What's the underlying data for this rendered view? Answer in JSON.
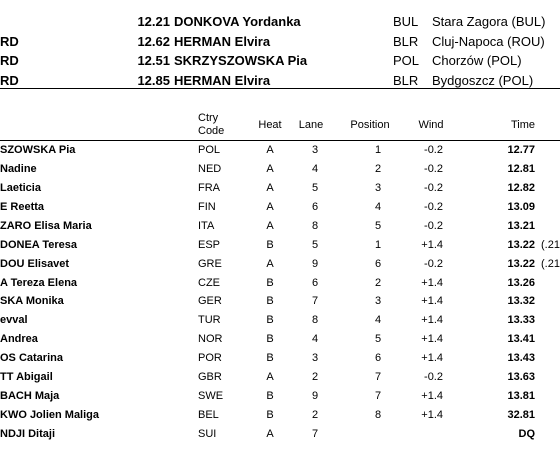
{
  "records": [
    {
      "time": "12.21",
      "athlete": "DONKOVA Yordanka",
      "country": "BUL",
      "venue": "Stara Zagora (BUL)"
    },
    {
      "label": "RD",
      "time": "12.62",
      "athlete": "HERMAN Elvira",
      "country": "BLR",
      "venue": "Cluj-Napoca (ROU)"
    },
    {
      "label": "RD",
      "time": "12.51",
      "athlete": "SKRZYSZOWSKA Pia",
      "country": "POL",
      "venue": "Chorzów (POL)"
    },
    {
      "label": "RD",
      "time": "12.85",
      "athlete": "HERMAN Elvira",
      "country": "BLR",
      "venue": "Bydgoszcz (POL)"
    }
  ],
  "table": {
    "header": {
      "code": [
        "Ctry",
        "Code"
      ],
      "heat": "Heat",
      "lane": "Lane",
      "position": "Position",
      "wind": "Wind",
      "time": "Time"
    },
    "rows": [
      {
        "name": "SZOWSKA Pia",
        "code": "POL",
        "heat": "A",
        "lane": "3",
        "position": "1",
        "wind": "-0.2",
        "time": "12.77"
      },
      {
        "name": "Nadine",
        "code": "NED",
        "heat": "A",
        "lane": "4",
        "position": "2",
        "wind": "-0.2",
        "time": "12.81"
      },
      {
        "name": "Laeticia",
        "code": "FRA",
        "heat": "A",
        "lane": "5",
        "position": "3",
        "wind": "-0.2",
        "time": "12.82"
      },
      {
        "name": "E Reetta",
        "code": "FIN",
        "heat": "A",
        "lane": "6",
        "position": "4",
        "wind": "-0.2",
        "time": "13.09"
      },
      {
        "name": "ZARO Elisa Maria",
        "code": "ITA",
        "heat": "A",
        "lane": "8",
        "position": "5",
        "wind": "-0.2",
        "time": "13.21"
      },
      {
        "name": "DONEA Teresa",
        "code": "ESP",
        "heat": "B",
        "lane": "5",
        "position": "1",
        "wind": "+1.4",
        "time": "13.22",
        "note": "(.21"
      },
      {
        "name": "DOU Elisavet",
        "code": "GRE",
        "heat": "A",
        "lane": "9",
        "position": "6",
        "wind": "-0.2",
        "time": "13.22",
        "note": "(.21"
      },
      {
        "name": "A Tereza Elena",
        "code": "CZE",
        "heat": "B",
        "lane": "6",
        "position": "2",
        "wind": "+1.4",
        "time": "13.26"
      },
      {
        "name": "SKA Monika",
        "code": "GER",
        "heat": "B",
        "lane": "7",
        "position": "3",
        "wind": "+1.4",
        "time": "13.32"
      },
      {
        "name": "evval",
        "code": "TUR",
        "heat": "B",
        "lane": "8",
        "position": "4",
        "wind": "+1.4",
        "time": "13.33"
      },
      {
        "name": "Andrea",
        "code": "NOR",
        "heat": "B",
        "lane": "4",
        "position": "5",
        "wind": "+1.4",
        "time": "13.41"
      },
      {
        "name": "OS Catarina",
        "code": "POR",
        "heat": "B",
        "lane": "3",
        "position": "6",
        "wind": "+1.4",
        "time": "13.43"
      },
      {
        "name": "TT Abigail",
        "code": "GBR",
        "heat": "A",
        "lane": "2",
        "position": "7",
        "wind": "-0.2",
        "time": "13.63"
      },
      {
        "name": "BACH Maja",
        "code": "SWE",
        "heat": "B",
        "lane": "9",
        "position": "7",
        "wind": "+1.4",
        "time": "13.81"
      },
      {
        "name": "KWO Jolien Maliga",
        "code": "BEL",
        "heat": "B",
        "lane": "2",
        "position": "8",
        "wind": "+1.4",
        "time": "32.81"
      },
      {
        "name": "NDJI Ditaji",
        "code": "SUI",
        "heat": "A",
        "lane": "7",
        "time": "DQ"
      }
    ]
  }
}
